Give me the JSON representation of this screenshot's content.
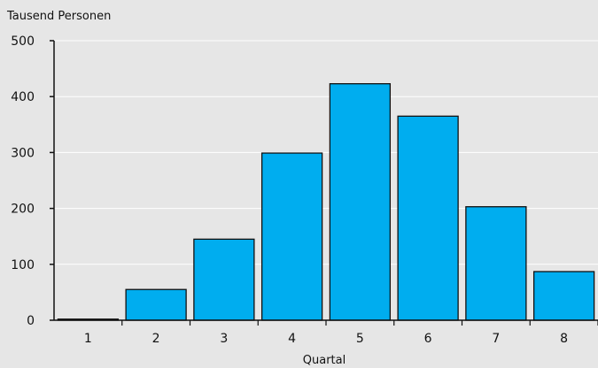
{
  "chart_data": {
    "type": "bar",
    "title": "",
    "ylabel": "Tausend Personen",
    "xlabel": "Quartal",
    "categories": [
      "1",
      "2",
      "3",
      "4",
      "5",
      "6",
      "7",
      "8"
    ],
    "values": [
      2,
      55,
      145,
      299,
      423,
      365,
      203,
      87
    ],
    "ylim": [
      0,
      500
    ],
    "yticks": [
      "0",
      "100",
      "200",
      "300",
      "400",
      "500"
    ],
    "grid": true,
    "legend": "none",
    "colors": {
      "bar": "#00adef",
      "bar_stroke": "#111111",
      "grid": "#ffffff",
      "background": "#e6e6e6"
    }
  }
}
